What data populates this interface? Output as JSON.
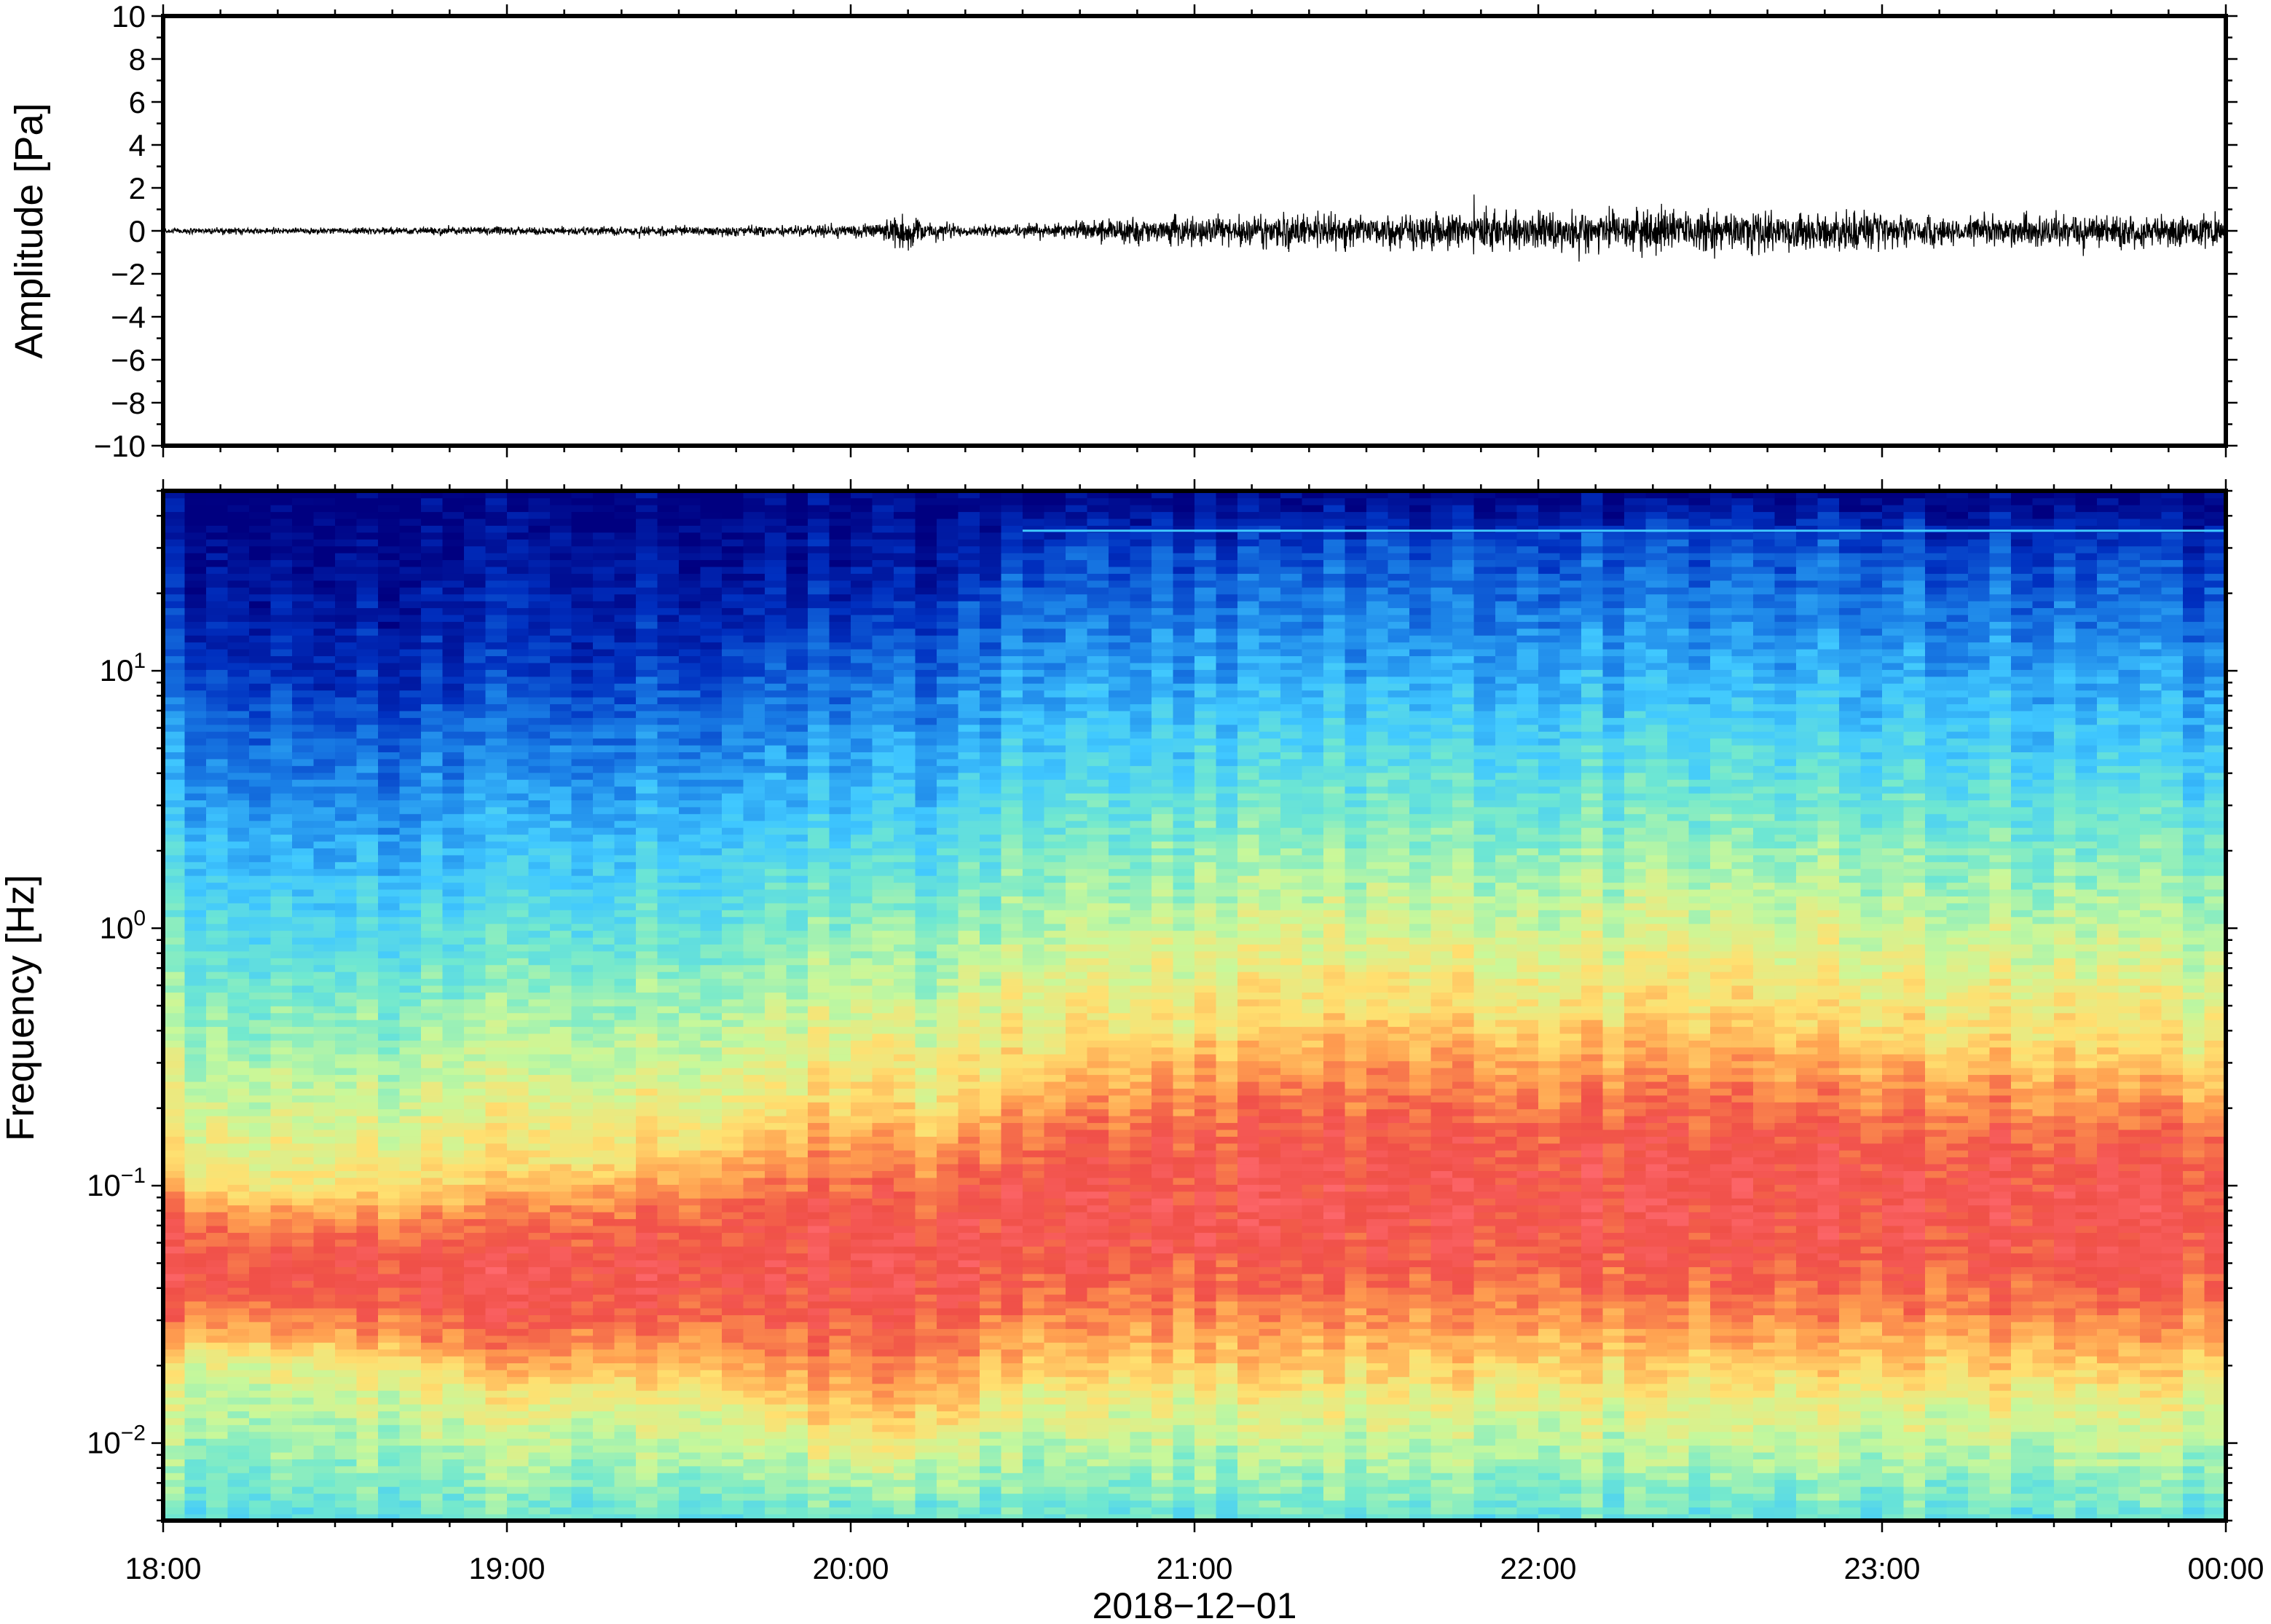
{
  "chart_data": [
    {
      "type": "line",
      "panel": "waveform",
      "ylabel": "Amplitude [Pa]",
      "ylim": [
        -10,
        10
      ],
      "yticks": [
        "10",
        "8",
        "6",
        "4",
        "2",
        "0",
        "−2",
        "−4",
        "−6",
        "−8",
        "−10"
      ],
      "ytick_values": [
        10,
        8,
        6,
        4,
        2,
        0,
        -2,
        -4,
        -6,
        -8,
        -10
      ],
      "x_range": [
        "2018-12-01 18:00",
        "2018-12-02 00:00"
      ],
      "series": [
        {
          "color": "#000000",
          "envelope_time": [
            "18:00",
            "18:30",
            "19:00",
            "19:30",
            "19:50",
            "20:05",
            "20:08",
            "20:20",
            "20:30",
            "20:45",
            "21:00",
            "21:15",
            "21:30",
            "21:45",
            "22:00",
            "22:15",
            "22:30",
            "22:45",
            "23:00",
            "23:15",
            "23:30",
            "23:45",
            "00:00"
          ],
          "envelope_amplitude": [
            0.2,
            0.2,
            0.25,
            0.3,
            0.35,
            0.5,
            1.0,
            0.35,
            0.4,
            0.7,
            0.9,
            1.1,
            1.1,
            1.2,
            1.2,
            1.3,
            1.3,
            1.2,
            1.1,
            1.0,
            1.0,
            1.0,
            1.0
          ]
        }
      ]
    },
    {
      "type": "heatmap",
      "panel": "spectrogram",
      "ylabel": "Frequency [Hz]",
      "yscale": "log",
      "ylim": [
        0.005,
        50
      ],
      "yticks": [
        {
          "value": 0.01,
          "base": "10",
          "exp": "−2"
        },
        {
          "value": 0.1,
          "base": "10",
          "exp": "−1"
        },
        {
          "value": 1,
          "base": "10",
          "exp": "0"
        },
        {
          "value": 10,
          "base": "10",
          "exp": "1"
        }
      ],
      "colormap": "jet",
      "colors": [
        "#000080",
        "#0030c0",
        "#1a7fe6",
        "#40c8ff",
        "#70e8d0",
        "#c8f89a",
        "#ffe070",
        "#ffa050",
        "#f05048",
        "#ff6a70"
      ],
      "x": [
        "18:00",
        "18:30",
        "19:00",
        "19:30",
        "20:00",
        "20:15",
        "20:30",
        "21:00",
        "21:30",
        "22:00",
        "22:30",
        "23:00",
        "23:30",
        "00:00"
      ],
      "band_edges_hz": {
        "dark_blue_upper_bound": [
          14,
          8,
          9,
          11,
          14,
          14,
          30,
          30,
          32,
          35,
          35,
          34,
          30,
          28
        ],
        "warm_band_upper_bound": [
          0.12,
          0.1,
          0.12,
          0.15,
          0.25,
          0.22,
          0.35,
          0.45,
          0.55,
          0.5,
          0.55,
          0.45,
          0.4,
          0.35
        ],
        "low_energy_band_upper_bound": [
          0.02,
          0.02,
          0.015,
          0.015,
          0.01,
          0.01,
          0.015,
          0.015,
          0.015,
          0.015,
          0.015,
          0.015,
          0.015,
          0.015
        ]
      },
      "annotations": [
        "narrow tonal line near 35 Hz after 20:30"
      ]
    }
  ],
  "xaxis": {
    "ticks": [
      "18:00",
      "19:00",
      "20:00",
      "21:00",
      "22:00",
      "23:00",
      "00:00"
    ],
    "date_label": "2018−12−01"
  }
}
